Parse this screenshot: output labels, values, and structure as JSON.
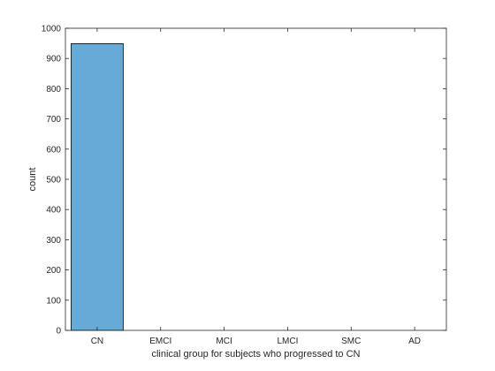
{
  "chart_data": {
    "type": "bar",
    "categories": [
      "CN",
      "EMCI",
      "MCI",
      "LMCI",
      "SMC",
      "AD"
    ],
    "values": [
      949,
      0,
      0,
      0,
      0,
      0
    ],
    "xlabel": "clinical group for subjects who progressed to CN",
    "ylabel": "count",
    "ylim": [
      0,
      1000
    ],
    "yticks": [
      0,
      100,
      200,
      300,
      400,
      500,
      600,
      700,
      800,
      900,
      1000
    ],
    "grid": false,
    "legend": "none",
    "bar_color": "#66aad8",
    "bar_edge_color": "#000000",
    "axis_color": "#262626"
  }
}
